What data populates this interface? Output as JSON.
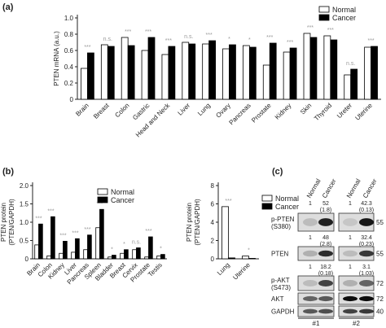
{
  "panels": [
    "(a)",
    "(b)",
    "(c)"
  ],
  "chart_data": [
    {
      "type": "bar",
      "ylabel": [
        "PTEN mRNA (a.u.)"
      ],
      "categories": [
        "Brain",
        "Breast",
        "Colon",
        "Gastric",
        "Head and Neck",
        "Liver",
        "Lung",
        "Ovary",
        "Pancreas",
        "Prostate",
        "Kidney",
        "Skin",
        "Thyroid",
        "Ureter",
        "Uterine"
      ],
      "series": [
        {
          "name": "Normal",
          "color": "#ffffff",
          "values": [
            0.38,
            0.67,
            0.76,
            0.6,
            0.55,
            0.7,
            0.68,
            0.62,
            0.66,
            0.42,
            0.58,
            0.81,
            0.78,
            0.3,
            0.64
          ]
        },
        {
          "name": "Cancer",
          "color": "#000000",
          "values": [
            0.57,
            0.65,
            0.66,
            0.76,
            0.65,
            0.68,
            0.72,
            0.67,
            0.64,
            0.69,
            0.63,
            0.76,
            0.73,
            0.37,
            0.65
          ]
        }
      ],
      "annotations": [
        "***",
        "n.s.",
        "***",
        "***",
        "***",
        "n.s.",
        "***",
        "*",
        "*",
        "***",
        "***",
        "***",
        "***",
        "n.s.",
        "***"
      ],
      "ylim": [
        0,
        1
      ],
      "yticks": [
        0,
        0.2,
        0.4,
        0.6,
        0.8,
        {
          "value": 1,
          "label": "1.0"
        }
      ],
      "legend": "upper right"
    },
    {
      "type": "bar",
      "ylabel": [
        "PTEN protein",
        "(PTEN/GAPDH)"
      ],
      "categories": [
        "Brain",
        "Colon",
        "Kidney",
        "Liver",
        "Pancreas",
        "Spleen",
        "Bladder",
        "Breast",
        "Cervix",
        "Prostate",
        "Testis"
      ],
      "series": [
        {
          "name": "Normal",
          "color": "#ffffff",
          "values": [
            0.38,
            0.08,
            0.15,
            0.18,
            0.25,
            0.85,
            0.05,
            0.15,
            0.25,
            0.05,
            0.08
          ]
        },
        {
          "name": "Cancer",
          "color": "#000000",
          "values": [
            0.95,
            1.15,
            0.48,
            0.55,
            0.65,
            1.35,
            0.1,
            0.25,
            0.3,
            0.6,
            0.12
          ]
        }
      ],
      "annotations": [
        "***",
        "***",
        "***",
        "***",
        "***",
        "***",
        "*",
        "*",
        "n.s.",
        "***",
        "*"
      ],
      "ylim": [
        0,
        2
      ],
      "yticks": [
        0,
        0.5,
        {
          "value": 1,
          "label": "1.0"
        },
        1.5,
        {
          "value": 2,
          "label": "2.0"
        }
      ],
      "legend": "upper center"
    },
    {
      "type": "bar",
      "ylabel": [
        "PTEN protein",
        "(PTEN/GAPDH)"
      ],
      "categories": [
        "Lung",
        "Uterine"
      ],
      "series": [
        {
          "name": "Normal",
          "color": "#ffffff",
          "values": [
            5.7,
            0.3
          ]
        },
        {
          "name": "Cancer",
          "color": "#000000",
          "values": [
            0.1,
            0.05
          ]
        }
      ],
      "annotations": [
        "***",
        "*"
      ],
      "ylim": [
        0,
        8
      ],
      "yticks": [
        0,
        2,
        4,
        6,
        8
      ],
      "legend": "right"
    }
  ],
  "blot": {
    "lanes": [
      "Normal",
      "Cancer",
      "Normal",
      "Cancer"
    ],
    "samples": [
      "#1",
      "#2"
    ],
    "rows": [
      {
        "label": [
          "p-PTEN",
          "(S380)"
        ],
        "quant": [
          [
            "1"
          ],
          [
            "52",
            "(1.8)"
          ],
          [
            "1"
          ],
          [
            "42.3",
            "(0.13)"
          ]
        ],
        "marker": "55"
      },
      {
        "label": [
          "PTEN"
        ],
        "quant": [
          [
            "1"
          ],
          [
            "48",
            "(2.8)"
          ],
          [
            "1"
          ],
          [
            "32.4",
            "(0.23)"
          ]
        ],
        "marker": "55"
      },
      {
        "label": [
          "p-AKT",
          "(S473)"
        ],
        "quant": [
          [
            "1"
          ],
          [
            "18.2",
            "(0.18)"
          ],
          [
            "1"
          ],
          [
            "3.1",
            "(1.03)"
          ]
        ],
        "marker": "72"
      },
      {
        "label": [
          "AKT"
        ],
        "quant": [],
        "marker": "72"
      },
      {
        "label": [
          "GAPDH"
        ],
        "quant": [],
        "marker": "40"
      }
    ]
  }
}
